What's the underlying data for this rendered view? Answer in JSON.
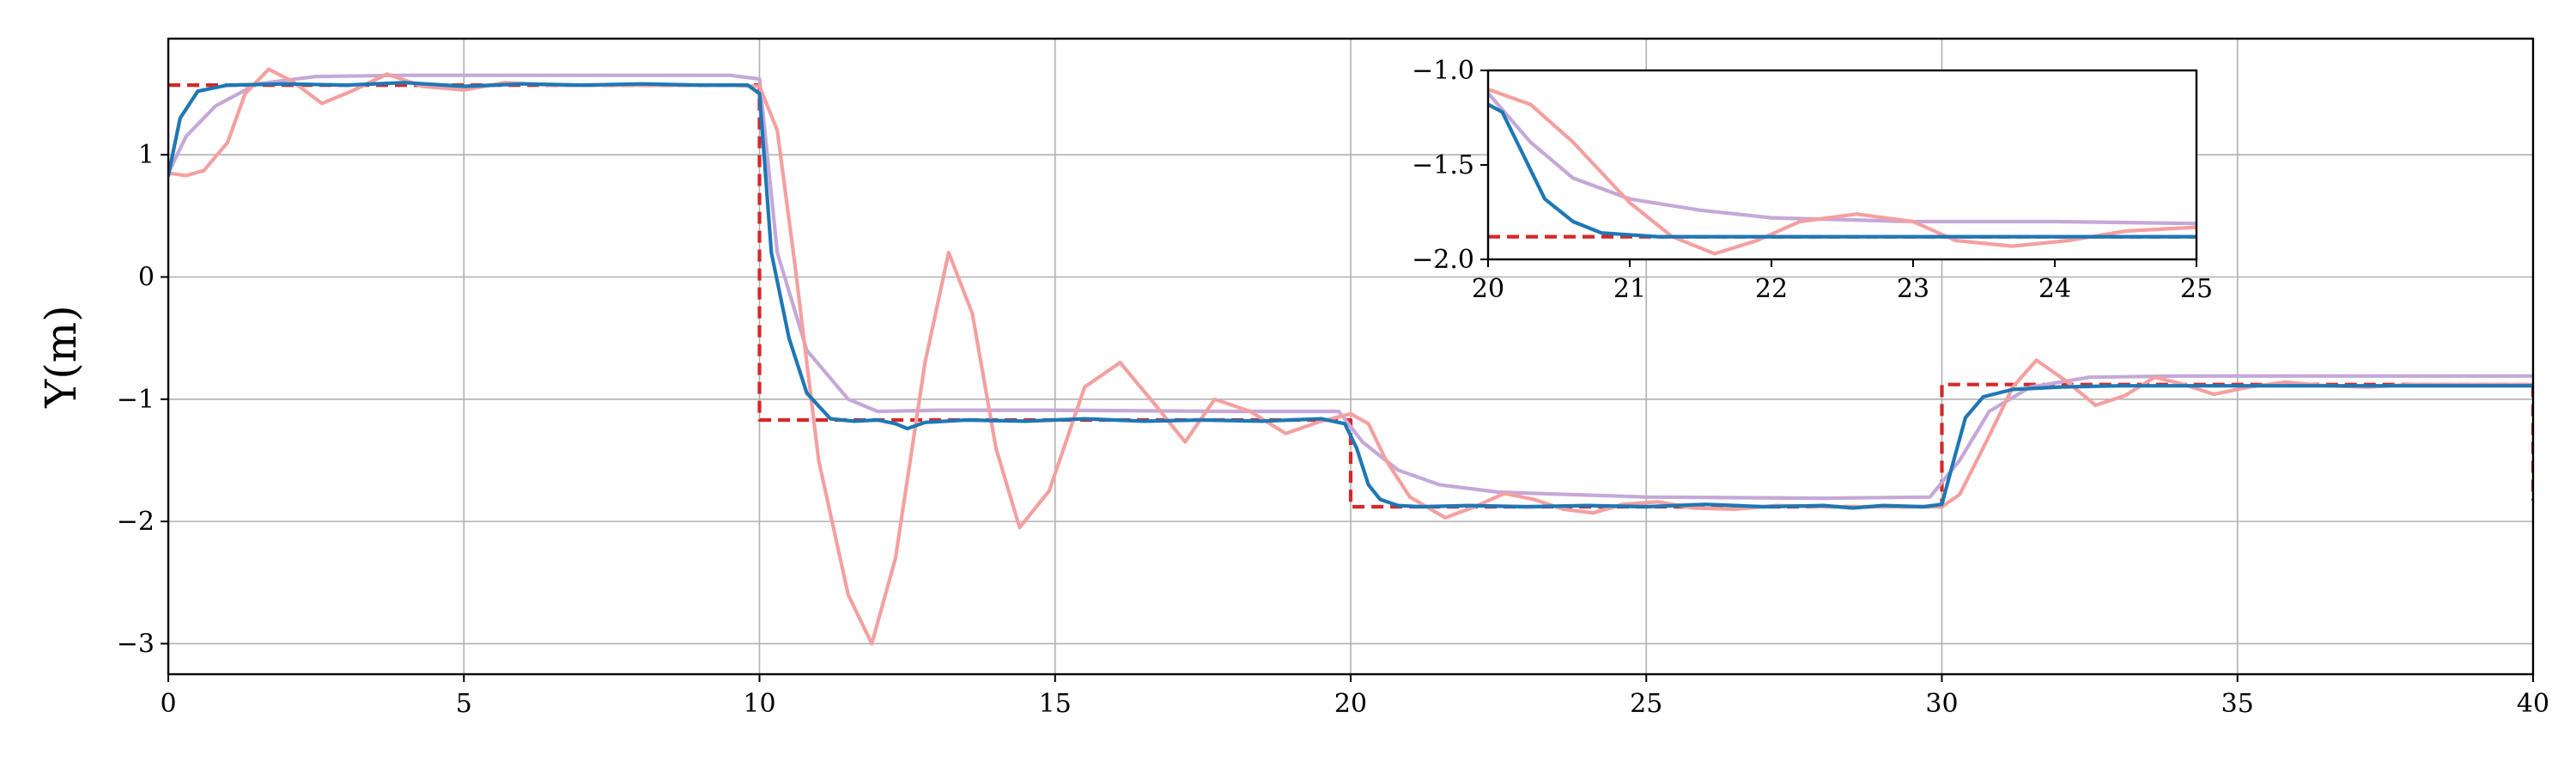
{
  "chart_data": [
    {
      "id": "main",
      "type": "line",
      "title": "",
      "xlabel": "",
      "ylabel": "Y(m)",
      "xlim": [
        0,
        40
      ],
      "ylim": [
        -3.25,
        1.95
      ],
      "xticks": [
        0,
        5,
        10,
        15,
        20,
        25,
        30,
        35,
        40
      ],
      "xtick_labels": [
        "0",
        "5",
        "10",
        "15",
        "20",
        "25",
        "30",
        "35",
        "40"
      ],
      "yticks": [
        -3,
        -2,
        -1,
        0,
        1
      ],
      "ytick_labels": [
        "−3",
        "−2",
        "−1",
        "0",
        "1"
      ],
      "grid": true,
      "legend": false,
      "series": [
        {
          "color": "#d62728",
          "dash": true,
          "x": [
            0,
            10,
            10,
            20,
            20,
            30,
            30,
            40,
            40
          ],
          "y": [
            1.57,
            1.57,
            -1.17,
            -1.17,
            -1.88,
            -1.88,
            -0.88,
            -0.88,
            -1.83
          ]
        },
        {
          "color": "#c5a8d8",
          "x": [
            0,
            0.3,
            0.8,
            1.5,
            2.5,
            4,
            6,
            8,
            9.5,
            10,
            10.3,
            10.8,
            11.5,
            12,
            13,
            15,
            18,
            19.8,
            20.2,
            20.8,
            21.5,
            22.5,
            25,
            28,
            29.8,
            30.3,
            30.8,
            31.5,
            32.5,
            34,
            37,
            40
          ],
          "y": [
            0.85,
            1.15,
            1.4,
            1.58,
            1.64,
            1.65,
            1.65,
            1.65,
            1.65,
            1.62,
            0.2,
            -0.6,
            -1.0,
            -1.1,
            -1.09,
            -1.09,
            -1.1,
            -1.1,
            -1.35,
            -1.58,
            -1.7,
            -1.76,
            -1.8,
            -1.81,
            -1.8,
            -1.5,
            -1.1,
            -0.9,
            -0.82,
            -0.81,
            -0.81,
            -0.81
          ]
        },
        {
          "color": "#f4a0a0",
          "x": [
            0,
            0.3,
            0.6,
            1.0,
            1.3,
            1.7,
            2.1,
            2.6,
            3.1,
            3.7,
            4.3,
            5.0,
            5.7,
            6.5,
            7.5,
            8.5,
            9.5,
            10.0,
            10.3,
            10.6,
            11.0,
            11.5,
            11.9,
            12.3,
            12.8,
            13.2,
            13.6,
            14.0,
            14.4,
            14.9,
            15.5,
            16.1,
            16.7,
            17.2,
            17.7,
            18.3,
            18.9,
            19.5,
            20.0,
            20.3,
            20.6,
            21.0,
            21.6,
            22.1,
            22.6,
            23.1,
            23.6,
            24.1,
            24.6,
            25.2,
            25.8,
            26.5,
            27.2,
            28,
            29,
            30.0,
            30.3,
            30.8,
            31.2,
            31.6,
            32.1,
            32.6,
            33.1,
            33.6,
            34.1,
            34.6,
            35.2,
            35.8,
            36.5,
            37.2,
            38,
            39,
            40
          ],
          "y": [
            0.85,
            0.83,
            0.87,
            1.1,
            1.5,
            1.7,
            1.6,
            1.42,
            1.52,
            1.66,
            1.56,
            1.53,
            1.59,
            1.57,
            1.57,
            1.57,
            1.57,
            1.56,
            1.2,
            0.1,
            -1.5,
            -2.6,
            -3.0,
            -2.3,
            -0.7,
            0.2,
            -0.3,
            -1.4,
            -2.05,
            -1.75,
            -0.9,
            -0.7,
            -1.05,
            -1.35,
            -1.0,
            -1.1,
            -1.28,
            -1.18,
            -1.12,
            -1.2,
            -1.5,
            -1.8,
            -1.97,
            -1.88,
            -1.77,
            -1.82,
            -1.9,
            -1.93,
            -1.86,
            -1.84,
            -1.89,
            -1.9,
            -1.87,
            -1.88,
            -1.88,
            -1.88,
            -1.78,
            -1.3,
            -0.9,
            -0.68,
            -0.85,
            -1.05,
            -0.97,
            -0.82,
            -0.88,
            -0.96,
            -0.9,
            -0.86,
            -0.89,
            -0.9,
            -0.88,
            -0.88,
            -0.88
          ]
        },
        {
          "color": "#1f77b4",
          "x": [
            0,
            0.2,
            0.5,
            1.0,
            2,
            3,
            4,
            5,
            6,
            7,
            8,
            9,
            9.8,
            10.0,
            10.2,
            10.5,
            10.8,
            11.2,
            11.6,
            12,
            12.3,
            12.5,
            12.8,
            13.5,
            14.5,
            15.5,
            16.5,
            17.5,
            18.5,
            19.5,
            19.9,
            20.1,
            20.3,
            20.5,
            20.8,
            21.2,
            22,
            23,
            24,
            25,
            26,
            27,
            28,
            28.5,
            29,
            29.7,
            30.0,
            30.2,
            30.4,
            30.7,
            31.2,
            32,
            33,
            35,
            37,
            40
          ],
          "y": [
            0.83,
            1.3,
            1.52,
            1.57,
            1.58,
            1.57,
            1.59,
            1.56,
            1.58,
            1.57,
            1.58,
            1.57,
            1.57,
            1.5,
            0.2,
            -0.5,
            -0.95,
            -1.16,
            -1.18,
            -1.17,
            -1.2,
            -1.24,
            -1.19,
            -1.17,
            -1.18,
            -1.16,
            -1.18,
            -1.17,
            -1.18,
            -1.16,
            -1.2,
            -1.4,
            -1.7,
            -1.82,
            -1.87,
            -1.88,
            -1.87,
            -1.88,
            -1.87,
            -1.88,
            -1.86,
            -1.88,
            -1.87,
            -1.89,
            -1.87,
            -1.88,
            -1.86,
            -1.5,
            -1.15,
            -0.98,
            -0.92,
            -0.9,
            -0.89,
            -0.89,
            -0.89,
            -0.89
          ]
        }
      ]
    },
    {
      "id": "inset",
      "type": "line",
      "title": "",
      "xlabel": "",
      "ylabel": "",
      "xlim": [
        20,
        25
      ],
      "ylim": [
        -2.0,
        -1.0
      ],
      "xticks": [
        20,
        21,
        22,
        23,
        24,
        25
      ],
      "xtick_labels": [
        "20",
        "21",
        "22",
        "23",
        "24",
        "25"
      ],
      "yticks": [
        -2.0,
        -1.5,
        -1.0
      ],
      "ytick_labels": [
        "−2.0",
        "−1.5",
        "−1.0"
      ],
      "grid": false,
      "legend": false,
      "series": [
        {
          "color": "#d62728",
          "dash": true,
          "x": [
            20,
            25
          ],
          "y": [
            -1.88,
            -1.88
          ]
        },
        {
          "color": "#c5a8d8",
          "x": [
            20,
            20.3,
            20.6,
            21.0,
            21.5,
            22,
            23,
            24,
            25
          ],
          "y": [
            -1.12,
            -1.38,
            -1.57,
            -1.68,
            -1.74,
            -1.78,
            -1.8,
            -1.8,
            -1.81
          ]
        },
        {
          "color": "#f4a0a0",
          "x": [
            20,
            20.3,
            20.6,
            21.0,
            21.3,
            21.6,
            21.9,
            22.2,
            22.6,
            23.0,
            23.3,
            23.7,
            24.1,
            24.5,
            25
          ],
          "y": [
            -1.1,
            -1.18,
            -1.38,
            -1.7,
            -1.88,
            -1.97,
            -1.9,
            -1.8,
            -1.76,
            -1.8,
            -1.9,
            -1.93,
            -1.9,
            -1.85,
            -1.83
          ]
        },
        {
          "color": "#1f77b4",
          "x": [
            20,
            20.1,
            20.25,
            20.4,
            20.6,
            20.8,
            21.2,
            22,
            23,
            24,
            25
          ],
          "y": [
            -1.18,
            -1.22,
            -1.45,
            -1.68,
            -1.8,
            -1.86,
            -1.88,
            -1.88,
            -1.88,
            -1.88,
            -1.88
          ]
        }
      ]
    }
  ]
}
